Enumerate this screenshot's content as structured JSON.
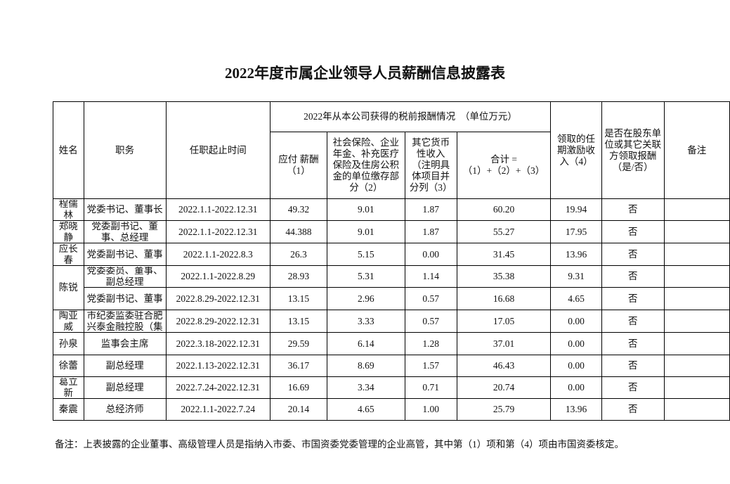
{
  "title": "2022年度市属企业领导人员薪酬信息披露表",
  "headers": {
    "name": "姓名",
    "position": "职务",
    "term": "任职起止时间",
    "group": "2022年从本公司获得的税前报酬情况　（单位万元）",
    "salary": "应付 薪酬（1）",
    "social": "社会保险、企业年金、补充医疗保险及住房公积金的单位缴存部分（2）",
    "other": "其它货币性收入（注明具体项目并分列（3）",
    "total": "合计 =（1）+（2）+（3）",
    "incentive": "领取的任期激励收入（4）",
    "related": "是否在股东单位或其它关联方领取报酬（是/否）",
    "remark": "备注"
  },
  "rows": [
    {
      "name": "程儒林",
      "position": "党委书记、董事长",
      "term": "2022.1.1-2022.12.31",
      "salary": "49.32",
      "social": "9.01",
      "other": "1.87",
      "total": "60.20",
      "incentive": "19.94",
      "related": "否",
      "remark": ""
    },
    {
      "name": "郑晓静",
      "position": "党委副书记、董事、总经理",
      "term": "2022.1.1-2022.12.31",
      "salary": "44.388",
      "social": "9.01",
      "other": "1.87",
      "total": "55.27",
      "incentive": "17.95",
      "related": "否",
      "remark": ""
    },
    {
      "name": "应长春",
      "position": "党委副书记、董事",
      "term": "2022.1.1-2022.8.3",
      "salary": "26.3",
      "social": "5.15",
      "other": "0.00",
      "total": "31.45",
      "incentive": "13.96",
      "related": "否",
      "remark": ""
    },
    {
      "name": "陈锐",
      "position": "党委委员、董事、副总经理",
      "term": "2022.1.1-2022.8.29",
      "salary": "28.93",
      "social": "5.31",
      "other": "1.14",
      "total": "35.38",
      "incentive": "9.31",
      "related": "否",
      "remark": ""
    },
    {
      "name": "",
      "position": "党委副书记、董事",
      "term": "2022.8.29-2022.12.31",
      "salary": "13.15",
      "social": "2.96",
      "other": "0.57",
      "total": "16.68",
      "incentive": "4.65",
      "related": "否",
      "remark": ""
    },
    {
      "name": "陶亚威",
      "position": "市纪委监委驻合肥兴泰金融控股（集",
      "term": "2022.8.29-2022.12.31",
      "salary": "13.15",
      "social": "3.33",
      "other": "0.57",
      "total": "17.05",
      "incentive": "0.00",
      "related": "否",
      "remark": ""
    },
    {
      "name": "孙泉",
      "position": "监事会主席",
      "term": "2022.3.18-2022.12.31",
      "salary": "29.59",
      "social": "6.14",
      "other": "1.28",
      "total": "37.01",
      "incentive": "0.00",
      "related": "否",
      "remark": ""
    },
    {
      "name": "徐蕾",
      "position": "副总经理",
      "term": "2022.1.13-2022.12.31",
      "salary": "36.17",
      "social": "8.69",
      "other": "1.57",
      "total": "46.43",
      "incentive": "0.00",
      "related": "否",
      "remark": ""
    },
    {
      "name": "葛立新",
      "position": "副总经理",
      "term": "2022.7.24-2022.12.31",
      "salary": "16.69",
      "social": "3.34",
      "other": "0.71",
      "total": "20.74",
      "incentive": "0.00",
      "related": "否",
      "remark": ""
    },
    {
      "name": "秦震",
      "position": "总经济师",
      "term": "2022.1.1-2022.7.24",
      "salary": "20.14",
      "social": "4.65",
      "other": "1.00",
      "total": "25.79",
      "incentive": "13.96",
      "related": "否",
      "remark": ""
    }
  ],
  "note": "备注：上表披露的企业董事、高级管理人员是指纳入市委、市国资委党委管理的企业高管，其中第（1）项和第（4）项由市国资委核定。"
}
